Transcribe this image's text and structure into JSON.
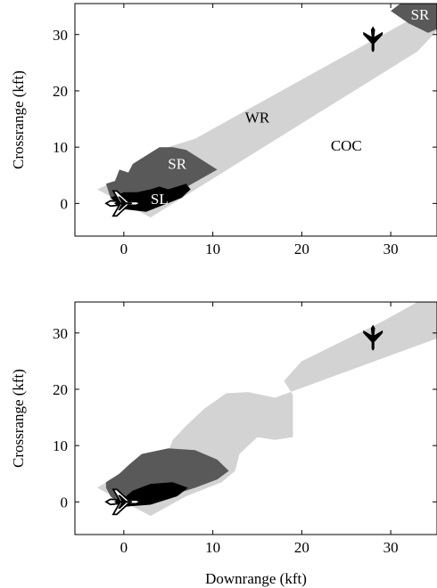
{
  "chart_data": [
    {
      "type": "area",
      "xlabel": "",
      "ylabel": "Crossrange (kft)",
      "xlim": [
        -5.5,
        35.2
      ],
      "ylim": [
        -5.8,
        35.5
      ],
      "xticks": [
        0,
        10,
        20,
        30
      ],
      "yticks": [
        0,
        10,
        20,
        30
      ],
      "colors": {
        "WR": "#d3d3d3",
        "SR": "#595959",
        "SL": "#000000",
        "COC": "#ffffff"
      },
      "labels": [
        {
          "text": "WR",
          "x": 15,
          "y": 15,
          "color": "#000000"
        },
        {
          "text": "COC",
          "x": 25,
          "y": 10,
          "color": "#000000"
        },
        {
          "text": "SR",
          "x": 6,
          "y": 6.8,
          "color": "#ffffff"
        },
        {
          "text": "SL",
          "x": 4,
          "y": 0.5,
          "color": "#ffffff"
        },
        {
          "text": "SR",
          "x": 33.3,
          "y": 33.3,
          "color": "#ffffff"
        }
      ],
      "regions": [
        {
          "name": "WR",
          "polygon": [
            [
              -3,
              2.5
            ],
            [
              2,
              6
            ],
            [
              4,
              9.5
            ],
            [
              8,
              11.5
            ],
            [
              36,
              36
            ],
            [
              36,
              32
            ],
            [
              33,
              27
            ],
            [
              3,
              -2.5
            ]
          ]
        },
        {
          "name": "SR",
          "polygon": [
            [
              -2,
              3.5
            ],
            [
              -1,
              4
            ],
            [
              -0.5,
              6
            ],
            [
              0.5,
              5.5
            ],
            [
              1,
              7
            ],
            [
              2,
              8
            ],
            [
              3,
              9
            ],
            [
              4,
              10
            ],
            [
              5.5,
              10
            ],
            [
              7,
              9.5
            ],
            [
              8.5,
              8
            ],
            [
              10.5,
              6
            ],
            [
              6,
              2
            ],
            [
              0.5,
              -0.5
            ],
            [
              -1.5,
              1
            ],
            [
              -1.8,
              2.5
            ]
          ]
        },
        {
          "name": "SL",
          "polygon": [
            [
              -1.5,
              1
            ],
            [
              0,
              2
            ],
            [
              1.5,
              2
            ],
            [
              3,
              2.5
            ],
            [
              4,
              3
            ],
            [
              5,
              2.5
            ],
            [
              6,
              3
            ],
            [
              7,
              3.5
            ],
            [
              7.5,
              2.5
            ],
            [
              6.5,
              1
            ],
            [
              2.5,
              -1.5
            ],
            [
              0,
              -1
            ]
          ]
        },
        {
          "name": "SR",
          "polygon": [
            [
              30,
              34.2
            ],
            [
              31.5,
              36
            ],
            [
              36,
              36
            ],
            [
              36,
              31.5
            ],
            [
              34.2,
              30.3
            ],
            [
              32,
              32
            ]
          ]
        }
      ],
      "aircraft": [
        {
          "name": "ownship",
          "x": 0,
          "y": 0,
          "heading": "east"
        },
        {
          "name": "intruder",
          "x": 28,
          "y": 29,
          "heading": "south"
        }
      ]
    },
    {
      "type": "area",
      "xlabel": "Downrange (kft)",
      "ylabel": "Crossrange (kft)",
      "xlim": [
        -5.5,
        35.2
      ],
      "ylim": [
        -5.8,
        35.5
      ],
      "xticks": [
        0,
        10,
        20,
        30
      ],
      "yticks": [
        0,
        10,
        20,
        30
      ],
      "colors": {
        "WR": "#d3d3d3",
        "SR": "#595959",
        "SL": "#000000",
        "COC": "#ffffff"
      },
      "labels": [],
      "regions": [
        {
          "name": "WR",
          "polygon": [
            [
              -3,
              2.5
            ],
            [
              -1,
              4.5
            ],
            [
              2,
              8
            ],
            [
              5,
              9
            ],
            [
              5.5,
              11
            ],
            [
              7,
              13.5
            ],
            [
              9,
              16.5
            ],
            [
              11.5,
              19.3
            ],
            [
              14,
              19.5
            ],
            [
              17,
              18.5
            ],
            [
              36,
              29.5
            ],
            [
              36,
              35.5
            ],
            [
              33,
              35.5
            ],
            [
              29,
              32
            ],
            [
              20,
              25
            ],
            [
              18,
              21.5
            ],
            [
              19,
              19
            ],
            [
              19,
              11.5
            ],
            [
              17,
              11
            ],
            [
              15,
              11.5
            ],
            [
              13,
              8.5
            ],
            [
              12.5,
              5.5
            ],
            [
              11,
              3.5
            ],
            [
              7,
              1
            ],
            [
              3,
              -2.5
            ]
          ]
        },
        {
          "name": "SR",
          "polygon": [
            [
              -2,
              3.5
            ],
            [
              -0.5,
              5
            ],
            [
              0.5,
              6.5
            ],
            [
              2,
              8.5
            ],
            [
              5,
              9.5
            ],
            [
              8,
              9.2
            ],
            [
              10.5,
              7.5
            ],
            [
              11.8,
              5.5
            ],
            [
              10.5,
              4
            ],
            [
              8,
              2.5
            ],
            [
              4,
              0.5
            ],
            [
              0,
              -1
            ],
            [
              -1.5,
              1
            ],
            [
              -2,
              2.5
            ]
          ]
        },
        {
          "name": "SL",
          "polygon": [
            [
              -0.5,
              0
            ],
            [
              1,
              2
            ],
            [
              3,
              3.2
            ],
            [
              5.5,
              3.5
            ],
            [
              7.2,
              2.5
            ],
            [
              6,
              1
            ],
            [
              3,
              -0.5
            ],
            [
              0.5,
              -0.8
            ]
          ]
        }
      ],
      "aircraft": [
        {
          "name": "ownship",
          "x": 0,
          "y": 0,
          "heading": "east"
        },
        {
          "name": "intruder",
          "x": 28,
          "y": 29,
          "heading": "south"
        }
      ]
    }
  ]
}
